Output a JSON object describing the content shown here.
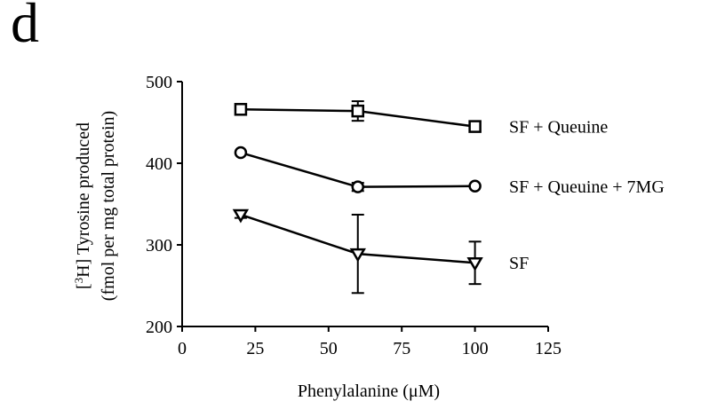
{
  "panel_label": "d",
  "chart_data": {
    "type": "line",
    "xlabel": "Phenylalanine (μM)",
    "ylabel_line1_parts": [
      "[",
      "3",
      "H] Tyrosine produced"
    ],
    "ylabel_line2": "(fmol per mg total protein)",
    "xlim": [
      0,
      125
    ],
    "ylim": [
      200,
      500
    ],
    "xticks": [
      "0",
      "25",
      "50",
      "75",
      "100",
      "125"
    ],
    "yticks": [
      "200",
      "300",
      "400",
      "500"
    ],
    "x": [
      20,
      60,
      100
    ],
    "series": [
      {
        "name": "SF + Queuine",
        "marker": "square",
        "values": [
          466,
          464,
          445
        ],
        "errors": [
          0,
          12,
          6
        ]
      },
      {
        "name": "SF + Queuine + 7MG",
        "marker": "circle",
        "values": [
          413,
          371,
          372
        ],
        "errors": [
          0,
          5,
          0
        ]
      },
      {
        "name": "SF",
        "marker": "triangle-down",
        "values": [
          337,
          289,
          278
        ],
        "errors": [
          4,
          48,
          26
        ]
      }
    ]
  }
}
